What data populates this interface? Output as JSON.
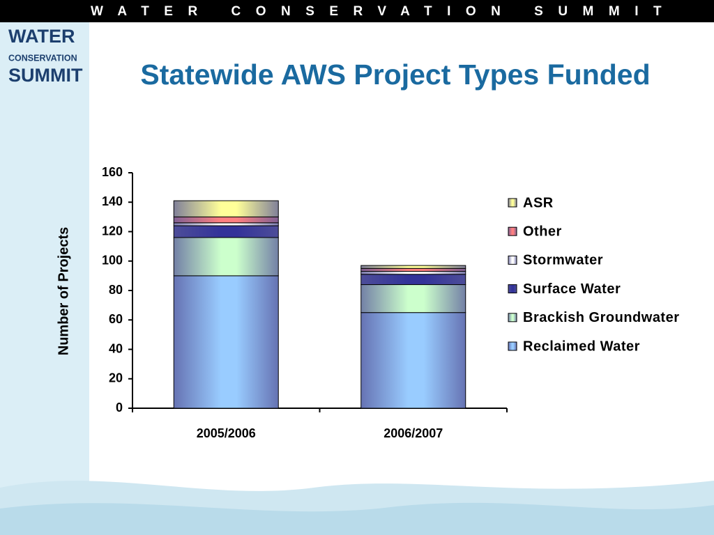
{
  "header": {
    "banner": "WATER CONSERVATION SUMMIT",
    "logo": [
      "WATER",
      "CONSERVATION",
      "SUMMIT"
    ]
  },
  "chart_data": {
    "type": "bar",
    "stacked": true,
    "title": "Statewide AWS Project Types Funded",
    "y_label": "Number of Projects",
    "categories": [
      "2005/2006",
      "2006/2007"
    ],
    "series": [
      {
        "name": "Reclaimed Water",
        "color": "#99ccff",
        "values": [
          90,
          65
        ]
      },
      {
        "name": "Brackish Groundwater",
        "color": "#ccffcc",
        "values": [
          26,
          19
        ]
      },
      {
        "name": "Surface Water",
        "color": "#333399",
        "values": [
          8,
          7
        ]
      },
      {
        "name": "Stormwater",
        "color": "#ffffff",
        "values": [
          2,
          2
        ]
      },
      {
        "name": "Other",
        "color": "#ff8080",
        "values": [
          4,
          2
        ]
      },
      {
        "name": "ASR",
        "color": "#ffff99",
        "values": [
          11,
          2
        ]
      }
    ],
    "ylim": [
      0,
      160
    ],
    "yticks": [
      0,
      20,
      40,
      60,
      80,
      100,
      120,
      140,
      160
    ],
    "grid": false,
    "legend": "right"
  }
}
